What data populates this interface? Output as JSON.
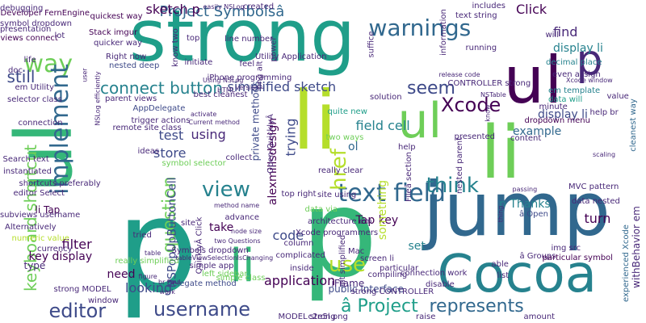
{
  "cloud": {
    "colors": {
      "purple": "#440154",
      "indigo": "#482878",
      "blue": "#3e4a89",
      "steel": "#31688e",
      "teal": "#26828e",
      "sea": "#1f9e89",
      "green": "#35b779",
      "lime": "#6ece58",
      "yellowgreen": "#b5de2b",
      "yellow": "#fde725"
    },
    "words": [
      {
        "text": "strong"
      },
      {
        "text": "p"
      },
      {
        "text": "p"
      },
      {
        "text": "li"
      },
      {
        "text": "li"
      },
      {
        "text": "ul"
      },
      {
        "text": "ul"
      },
      {
        "text": "jump"
      },
      {
        "text": "Cocoa"
      },
      {
        "text": "p"
      },
      {
        "text": "ul"
      },
      {
        "text": "li"
      },
      {
        "text": "warnings"
      },
      {
        "text": "way"
      },
      {
        "text": "implement"
      },
      {
        "text": "Project Symbolsâ"
      },
      {
        "text": "Xcode"
      },
      {
        "text": "seem"
      },
      {
        "text": "text field"
      },
      {
        "text": "username"
      },
      {
        "text": "question"
      },
      {
        "text": "editor"
      },
      {
        "text": "connect button"
      },
      {
        "text": "view"
      },
      {
        "text": "href"
      },
      {
        "text": "think"
      },
      {
        "text": "use"
      },
      {
        "text": "represents"
      },
      {
        "text": "â Project"
      },
      {
        "text": "keyboard shortcut"
      },
      {
        "text": "still"
      },
      {
        "text": "sketch p"
      },
      {
        "text": "Click"
      },
      {
        "text": "find"
      },
      {
        "text": "display li"
      },
      {
        "text": "simplified sketch"
      },
      {
        "text": "field cell"
      },
      {
        "text": "example"
      },
      {
        "text": "test"
      },
      {
        "text": "store"
      },
      {
        "text": "using"
      },
      {
        "text": "trying"
      },
      {
        "text": "code"
      },
      {
        "text": "application"
      },
      {
        "text": "filter"
      },
      {
        "text": "key display"
      },
      {
        "text": "need"
      },
      {
        "text": "looking"
      },
      {
        "text": "Tap key"
      },
      {
        "text": "set"
      },
      {
        "text": "p Thanks"
      },
      {
        "text": "turn"
      },
      {
        "text": "li Tap"
      },
      {
        "text": "type"
      },
      {
        "text": "take"
      },
      {
        "text": "iFrame"
      },
      {
        "text": "alexmillsdesign"
      },
      {
        "text": "something"
      },
      {
        "text": "public interface"
      },
      {
        "text": "NSPopUpButtonCell"
      },
      {
        "text": "private methods"
      },
      {
        "text": "top right"
      },
      {
        "text": "ol"
      },
      {
        "text": "Symbols dropdown"
      },
      {
        "text": "delegate method"
      },
      {
        "text": "left sidebar"
      },
      {
        "text": "simple app"
      },
      {
        "text": "simple class"
      },
      {
        "text": "really simplified"
      },
      {
        "text": "nested deep"
      },
      {
        "text": "Right now"
      },
      {
        "text": "AppDelegate"
      },
      {
        "text": "best cleanest"
      },
      {
        "text": "two ways"
      },
      {
        "text": "site using"
      },
      {
        "text": "really clear"
      },
      {
        "text": "quite new"
      },
      {
        "text": "solution"
      },
      {
        "text": "Developer FernEngine"
      },
      {
        "text": "symbol dropdown"
      },
      {
        "text": "views connect"
      },
      {
        "text": "Stack imgur"
      },
      {
        "text": "quicker way"
      },
      {
        "text": "quickest way"
      },
      {
        "text": "created"
      },
      {
        "text": "text string"
      },
      {
        "text": "includes"
      },
      {
        "text": "decimal place"
      },
      {
        "text": "running"
      },
      {
        "text": "even assign"
      },
      {
        "text": "em template"
      },
      {
        "text": "data will"
      },
      {
        "text": "display li"
      },
      {
        "text": "value"
      },
      {
        "text": "MVC pattern"
      },
      {
        "text": "data nested"
      },
      {
        "text": "â Open"
      },
      {
        "text": "â Groups"
      },
      {
        "text": "particular symbol"
      },
      {
        "text": "img src"
      },
      {
        "text": "withBehavior em"
      },
      {
        "text": "experienced Xcode"
      },
      {
        "text": "cleanest way"
      },
      {
        "text": "help br"
      },
      {
        "text": "dropdown menu"
      },
      {
        "text": "content"
      },
      {
        "text": "presented"
      },
      {
        "text": "help"
      },
      {
        "text": "list"
      },
      {
        "text": "able"
      },
      {
        "text": "Mac"
      },
      {
        "text": "inside"
      },
      {
        "text": "data via"
      },
      {
        "text": "column"
      },
      {
        "text": "complicated"
      },
      {
        "text": "tried"
      },
      {
        "text": "advance"
      },
      {
        "text": "site"
      },
      {
        "text": "ideas"
      },
      {
        "text": "collect"
      },
      {
        "text": "symbol selector"
      },
      {
        "text": "parent views"
      },
      {
        "text": "editor Select"
      },
      {
        "text": "Search text"
      },
      {
        "text": "instantiated"
      },
      {
        "text": "shortcuts preferably"
      },
      {
        "text": "subviews username"
      },
      {
        "text": "Alternatively"
      },
      {
        "text": "numeric value"
      },
      {
        "text": "currency"
      },
      {
        "text": "strong MODEL"
      },
      {
        "text": "window"
      },
      {
        "text": "em Utility"
      },
      {
        "text": "connection"
      },
      {
        "text": "selector class"
      },
      {
        "text": "top"
      },
      {
        "text": "initiate"
      },
      {
        "text": "know two"
      },
      {
        "text": "png alt"
      },
      {
        "text": "feel"
      },
      {
        "text": "iPhone programming"
      },
      {
        "text": "information"
      },
      {
        "text": "suffice"
      },
      {
        "text": "Xcode programmers"
      },
      {
        "text": "architecture em"
      },
      {
        "text": "QuicklyÂ Click"
      },
      {
        "text": "Open QuicklyÂ"
      },
      {
        "text": "Fileâ section"
      },
      {
        "text": "nested parent"
      },
      {
        "text": "trigger actions"
      },
      {
        "text": "remote site class"
      },
      {
        "text": "alt simplified"
      },
      {
        "text": "c2e5l png"
      },
      {
        "text": "MODEL strong"
      },
      {
        "text": "raise"
      },
      {
        "text": "amount"
      },
      {
        "text": "strong CONTROLLER"
      },
      {
        "text": "connection work"
      },
      {
        "text": "disable"
      },
      {
        "text": "compiling"
      },
      {
        "text": "particular"
      },
      {
        "text": "screen li"
      },
      {
        "text": "power"
      },
      {
        "text": "line number"
      },
      {
        "text": "Utility Application"
      },
      {
        "text": "will"
      },
      {
        "text": "minute"
      },
      {
        "text": "CONTROLLER strong"
      },
      {
        "text": "Xcode window"
      },
      {
        "text": "NSTable"
      },
      {
        "text": "release code"
      },
      {
        "text": "debugging"
      },
      {
        "text": "presentation"
      },
      {
        "text": "lot"
      },
      {
        "text": "life"
      },
      {
        "text": "doc"
      },
      {
        "text": "user"
      },
      {
        "text": "table"
      },
      {
        "text": "figure"
      },
      {
        "text": "br Paul"
      },
      {
        "text": "work"
      },
      {
        "text": "activate"
      },
      {
        "text": "Current method"
      },
      {
        "text": "method name"
      },
      {
        "text": "node size"
      },
      {
        "text": "tableViewSelectionIsChanging"
      },
      {
        "text": "two Questions"
      },
      {
        "text": "HTML"
      },
      {
        "text": "version"
      },
      {
        "text": "easily NSLog"
      },
      {
        "text": "Using NSLog"
      },
      {
        "text": "know"
      },
      {
        "text": "thing"
      },
      {
        "text": "passing"
      },
      {
        "text": "scaling"
      },
      {
        "text": "NSLog efficiently"
      },
      {
        "text": "table view"
      }
    ]
  }
}
